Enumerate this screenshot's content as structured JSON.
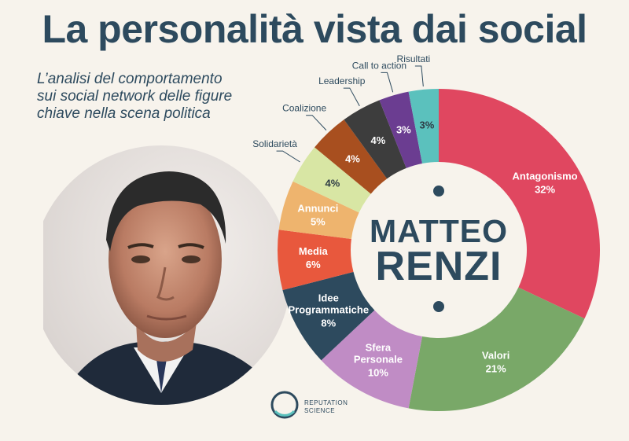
{
  "title": "La personalità vista dai social",
  "subtitle_lines": [
    "L’analisi del comportamento",
    "sui social network delle figure",
    "chiave nella scena politica"
  ],
  "center_label": {
    "line1": "MATTEO",
    "line2": "RENZI"
  },
  "logo": {
    "line1": "REPUTATION",
    "line2": "SCIENCE"
  },
  "colors": {
    "title": "#2d4a5e",
    "background": "#f7f3ec"
  },
  "chart_data": {
    "type": "pie",
    "variant": "donut",
    "unit": "%",
    "slices": [
      {
        "label": "Antagonismo",
        "value": 32,
        "display": "32%",
        "color": "#e04760",
        "text_color": "#ffffff",
        "label_placement": "inside"
      },
      {
        "label": "Valori",
        "value": 21,
        "display": "21%",
        "color": "#79a868",
        "text_color": "#ffffff",
        "label_placement": "inside"
      },
      {
        "label": "Sfera Personale",
        "value": 10,
        "display": "10%",
        "color": "#c08cc5",
        "text_color": "#ffffff",
        "label_placement": "inside"
      },
      {
        "label": "Idee Programmatiche",
        "value": 8,
        "display": "8%",
        "color": "#2d4a5e",
        "text_color": "#ffffff",
        "label_placement": "inside"
      },
      {
        "label": "Media",
        "value": 6,
        "display": "6%",
        "color": "#e8583d",
        "text_color": "#ffffff",
        "label_placement": "inside"
      },
      {
        "label": "Annunci",
        "value": 5,
        "display": "5%",
        "color": "#eeb46e",
        "text_color": "#ffffff",
        "label_placement": "inside"
      },
      {
        "label": "Solidarietà",
        "value": 4,
        "display": "4%",
        "color": "#d8e6a4",
        "text_color": "#2d3b44",
        "label_placement": "outside"
      },
      {
        "label": "Coalizione",
        "value": 4,
        "display": "4%",
        "color": "#a84f1f",
        "text_color": "#ffffff",
        "label_placement": "outside"
      },
      {
        "label": "Leadership",
        "value": 4,
        "display": "4%",
        "color": "#3d3d3d",
        "text_color": "#ffffff",
        "label_placement": "outside"
      },
      {
        "label": "Call to action",
        "value": 3,
        "display": "3%",
        "color": "#6b3d91",
        "text_color": "#ffffff",
        "label_placement": "outside"
      },
      {
        "label": "Risultati",
        "value": 3,
        "display": "3%",
        "color": "#5bc1bd",
        "text_color": "#2d3b44",
        "label_placement": "outside"
      }
    ]
  }
}
